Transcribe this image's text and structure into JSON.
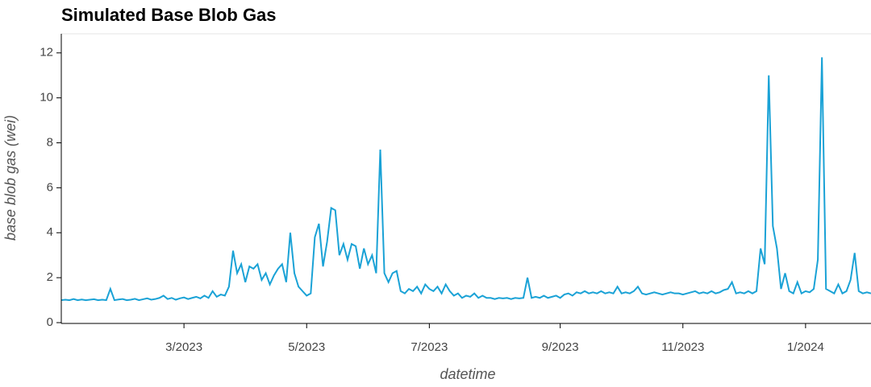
{
  "chart_data": {
    "type": "line",
    "title": "Simulated Base Blob Gas",
    "x_label": "datetime",
    "y_label": "base blob gas (wei)",
    "color": "#1aa2d6",
    "categories": [
      null,
      null,
      null,
      null,
      null,
      null,
      null,
      null,
      null,
      null,
      null,
      null,
      null,
      null,
      null,
      null,
      null,
      null,
      null,
      null,
      null,
      null,
      null,
      null,
      null,
      null,
      null,
      null,
      null,
      null,
      "3/2023",
      null,
      null,
      null,
      null,
      null,
      null,
      null,
      null,
      null,
      null,
      null,
      null,
      null,
      null,
      null,
      null,
      null,
      null,
      null,
      null,
      null,
      null,
      null,
      null,
      null,
      null,
      null,
      null,
      null,
      "5/2023",
      null,
      null,
      null,
      null,
      null,
      null,
      null,
      null,
      null,
      null,
      null,
      null,
      null,
      null,
      null,
      null,
      null,
      null,
      null,
      null,
      null,
      null,
      null,
      null,
      null,
      null,
      null,
      null,
      null,
      "7/2023",
      null,
      null,
      null,
      null,
      null,
      null,
      null,
      null,
      null,
      null,
      null,
      null,
      null,
      null,
      null,
      null,
      null,
      null,
      null,
      null,
      null,
      null,
      null,
      null,
      null,
      null,
      null,
      null,
      null,
      null,
      null,
      "9/2023",
      null,
      null,
      null,
      null,
      null,
      null,
      null,
      null,
      null,
      null,
      null,
      null,
      null,
      null,
      null,
      null,
      null,
      null,
      null,
      null,
      null,
      null,
      null,
      null,
      null,
      null,
      null,
      null,
      null,
      "11/2023",
      null,
      null,
      null,
      null,
      null,
      null,
      null,
      null,
      null,
      null,
      null,
      null,
      null,
      null,
      null,
      null,
      null,
      null,
      null,
      null,
      null,
      null,
      null,
      null,
      null,
      null,
      null,
      null,
      null,
      "1/2024",
      null,
      null,
      null,
      null,
      null,
      null,
      null,
      null,
      null,
      null,
      null,
      null,
      null,
      null,
      null,
      null
    ],
    "values": [
      1.0,
      1.02,
      1.0,
      1.05,
      1.0,
      1.03,
      1.0,
      1.02,
      1.04,
      1.0,
      1.02,
      1.0,
      1.5,
      1.0,
      1.03,
      1.05,
      1.0,
      1.02,
      1.06,
      1.0,
      1.04,
      1.08,
      1.02,
      1.05,
      1.1,
      1.2,
      1.05,
      1.1,
      1.02,
      1.08,
      1.12,
      1.05,
      1.1,
      1.15,
      1.08,
      1.2,
      1.1,
      1.4,
      1.15,
      1.25,
      1.2,
      1.6,
      3.2,
      2.2,
      2.6,
      1.8,
      2.5,
      2.4,
      2.6,
      1.9,
      2.2,
      1.7,
      2.1,
      2.4,
      2.6,
      1.8,
      4.0,
      2.2,
      1.6,
      1.4,
      1.2,
      1.3,
      3.8,
      4.4,
      2.5,
      3.6,
      5.1,
      5.0,
      3.0,
      3.5,
      2.8,
      3.5,
      3.4,
      2.4,
      3.3,
      2.6,
      3.0,
      2.2,
      7.7,
      2.2,
      1.8,
      2.2,
      2.3,
      1.4,
      1.3,
      1.5,
      1.4,
      1.6,
      1.3,
      1.7,
      1.5,
      1.4,
      1.6,
      1.3,
      1.7,
      1.4,
      1.2,
      1.3,
      1.1,
      1.2,
      1.15,
      1.3,
      1.1,
      1.2,
      1.1,
      1.1,
      1.05,
      1.1,
      1.08,
      1.1,
      1.05,
      1.1,
      1.08,
      1.1,
      2.0,
      1.1,
      1.15,
      1.1,
      1.2,
      1.1,
      1.15,
      1.2,
      1.1,
      1.25,
      1.3,
      1.2,
      1.35,
      1.3,
      1.4,
      1.3,
      1.35,
      1.3,
      1.4,
      1.3,
      1.35,
      1.3,
      1.6,
      1.3,
      1.35,
      1.3,
      1.4,
      1.6,
      1.3,
      1.25,
      1.3,
      1.35,
      1.3,
      1.25,
      1.3,
      1.35,
      1.3,
      1.3,
      1.25,
      1.3,
      1.35,
      1.4,
      1.3,
      1.35,
      1.3,
      1.4,
      1.3,
      1.35,
      1.45,
      1.5,
      1.8,
      1.3,
      1.35,
      1.3,
      1.4,
      1.3,
      1.4,
      3.3,
      2.6,
      11.0,
      4.3,
      3.3,
      1.5,
      2.2,
      1.4,
      1.3,
      1.8,
      1.3,
      1.4,
      1.35,
      1.5,
      2.8,
      11.8,
      1.5,
      1.4,
      1.3,
      1.7,
      1.3,
      1.4,
      1.9,
      3.1,
      1.4,
      1.3,
      1.35,
      1.3
    ],
    "ylim": [
      0,
      12.85
    ],
    "yticks": [
      0,
      2,
      4,
      6,
      8,
      10,
      12
    ]
  }
}
